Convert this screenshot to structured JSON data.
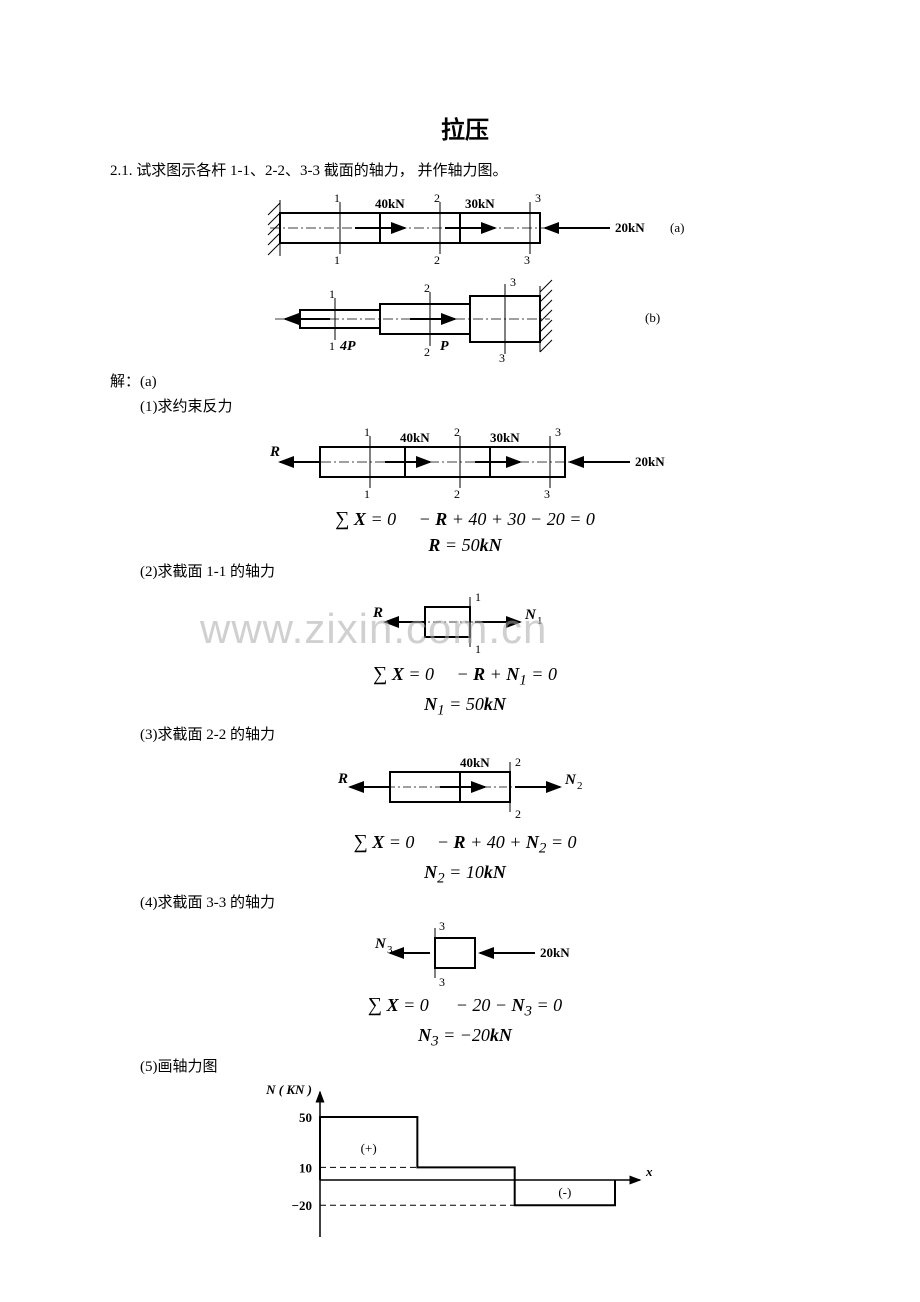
{
  "title": "拉压",
  "problem": "2.1.   试求图示各杆 1-1、2-2、3-3 截面的轴力，   并作轴力图。",
  "figA": {
    "load40": "40kN",
    "load30": "30kN",
    "load20": "20kN",
    "label_a": "(a)"
  },
  "figB": {
    "P": "P",
    "fourP": "4P",
    "label_b": "(b)"
  },
  "solve": {
    "header": "解：(a)",
    "step1": "(1)求约束反力",
    "step2": "(2)求截面 1-1 的轴力",
    "step3": "(3)求截面 2-2 的轴力",
    "step4": "(4)求截面 3-3 的轴力",
    "step5": "(5)画轴力图"
  },
  "sym": {
    "R": "R",
    "N1": "N",
    "N2": "N",
    "N3": "N",
    "sub1": "1",
    "sub2": "2",
    "sub3": "3"
  },
  "eqs": {
    "sumX0_a": "∑ X = 0     − R + 40 + 30 − 20 = 0",
    "R50": "R = 50kN",
    "sumX0_b": "∑ X = 0     − R + N₁ = 0",
    "N1_50": "N₁ = 50kN",
    "sumX0_c": "∑ X = 0     − R + 40 + N₂ = 0",
    "N2_10": "N₂ = 10kN",
    "sumX0_d": "∑ X = 0      − 20 − N₃ = 0",
    "N3_m20": "N₃ = −20kN"
  },
  "chart": {
    "ylabel": "N ( KN )",
    "xlabel": "x",
    "y_ticks": [
      "50",
      "10",
      "−20"
    ],
    "levels": [
      50,
      10,
      -20
    ],
    "x_breaks": [
      0,
      0.33,
      0.66,
      1.0
    ],
    "plus": "(+)",
    "minus": "(-)",
    "axis_color": "#000000",
    "dash_color": "#000000",
    "line_color": "#000000",
    "bg": "#ffffff",
    "font_size": 13
  },
  "watermark": "www.zixin.com.cn",
  "colors": {
    "stroke": "#000000",
    "hatch": "#000000"
  }
}
